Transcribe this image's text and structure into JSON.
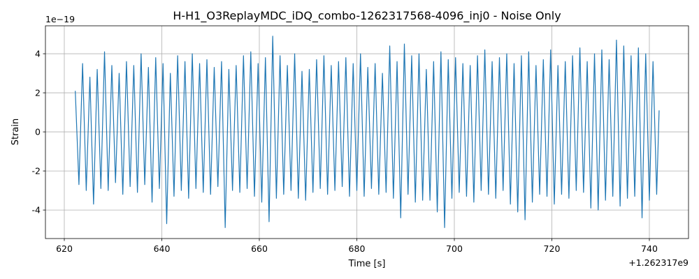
{
  "chart_data": {
    "type": "line",
    "title": "H-H1_O3ReplayMDC_iDQ_combo-1262317568-4096_inj0 - Noise Only",
    "xlabel": "Time [s]",
    "ylabel": "Strain",
    "x_offset_label": "+1.262317e9",
    "y_offset_label": "1e−19",
    "color": "#1f77b4",
    "grid": true,
    "xlim": [
      616.13,
      748.03
    ],
    "ylim": [
      -5.46,
      5.43
    ],
    "xticks": [
      620,
      640,
      660,
      680,
      700,
      720,
      740
    ],
    "yticks": [
      -4,
      -2,
      0,
      2,
      4
    ],
    "x": [
      622.25,
      623,
      623.75,
      624.5,
      625.25,
      626,
      626.75,
      627.5,
      628.25,
      629,
      629.75,
      630.5,
      631.25,
      632,
      632.75,
      633.5,
      634.25,
      635,
      635.75,
      636.5,
      637.25,
      638,
      638.75,
      639.5,
      640.25,
      641,
      641.75,
      642.5,
      643.25,
      644,
      644.75,
      645.5,
      646.25,
      647,
      647.75,
      648.5,
      649.25,
      650,
      650.75,
      651.5,
      652.25,
      653,
      653.75,
      654.5,
      655.25,
      656,
      656.75,
      657.5,
      658.25,
      659,
      659.75,
      660.5,
      661.25,
      662,
      662.75,
      663.5,
      664.25,
      665,
      665.75,
      666.5,
      667.25,
      668,
      668.75,
      669.5,
      670.25,
      671,
      671.75,
      672.5,
      673.25,
      674,
      674.75,
      675.5,
      676.25,
      677,
      677.75,
      678.5,
      679.25,
      680,
      680.75,
      681.5,
      682.25,
      683,
      683.75,
      684.5,
      685.25,
      686,
      686.75,
      687.5,
      688.25,
      689,
      689.75,
      690.5,
      691.25,
      692,
      692.75,
      693.5,
      694.25,
      695,
      695.75,
      696.5,
      697.25,
      698,
      698.75,
      699.5,
      700.25,
      701,
      701.75,
      702.5,
      703.25,
      704,
      704.75,
      705.5,
      706.25,
      707,
      707.75,
      708.5,
      709.25,
      710,
      710.75,
      711.5,
      712.25,
      713,
      713.75,
      714.5,
      715.25,
      716,
      716.75,
      717.5,
      718.25,
      719,
      719.75,
      720.5,
      721.25,
      722,
      722.75,
      723.5,
      724.25,
      725,
      725.75,
      726.5,
      727.25,
      728,
      728.75,
      729.5,
      730.25,
      731,
      731.75,
      732.5,
      733.25,
      734,
      734.75,
      735.5,
      736.25,
      737,
      737.75,
      738.5,
      739.25,
      740,
      740.75,
      741.5,
      742
    ],
    "values": [
      2.1,
      -2.7,
      3.5,
      -3.0,
      2.8,
      -3.7,
      3.2,
      -2.9,
      4.1,
      -3.0,
      3.4,
      -2.6,
      3.0,
      -3.2,
      3.6,
      -2.8,
      3.4,
      -3.1,
      4.0,
      -2.7,
      3.3,
      -3.6,
      3.8,
      -2.9,
      3.5,
      -4.7,
      3.0,
      -3.3,
      3.9,
      -3.0,
      3.6,
      -3.4,
      4.0,
      -2.9,
      3.5,
      -3.1,
      3.7,
      -3.2,
      3.3,
      -2.8,
      3.6,
      -4.9,
      3.2,
      -3.0,
      3.4,
      -3.1,
      3.9,
      -2.9,
      4.1,
      -3.3,
      3.5,
      -3.6,
      3.8,
      -4.6,
      4.9,
      -3.4,
      3.9,
      -3.2,
      3.4,
      -3.0,
      4.0,
      -3.4,
      3.1,
      -3.5,
      3.2,
      -3.1,
      3.7,
      -2.9,
      3.9,
      -3.2,
      3.4,
      -3.0,
      3.6,
      -2.8,
      3.8,
      -3.3,
      3.5,
      -3.0,
      4.0,
      -3.3,
      3.3,
      -2.9,
      3.5,
      -3.2,
      3.0,
      -3.1,
      4.4,
      -3.4,
      3.6,
      -4.4,
      4.5,
      -3.2,
      3.9,
      -3.6,
      4.0,
      -3.5,
      3.2,
      -3.5,
      3.6,
      -4.1,
      4.1,
      -4.9,
      3.7,
      -3.4,
      3.8,
      -3.1,
      3.5,
      -3.3,
      3.4,
      -3.6,
      3.9,
      -3.0,
      4.2,
      -3.2,
      3.6,
      -3.4,
      3.8,
      -3.0,
      4.0,
      -3.7,
      3.5,
      -4.1,
      3.9,
      -4.5,
      4.1,
      -3.6,
      3.4,
      -3.2,
      3.7,
      -3.3,
      4.2,
      -3.7,
      3.4,
      -3.2,
      3.6,
      -3.4,
      3.9,
      -3.0,
      4.3,
      -3.1,
      3.6,
      -3.9,
      4.0,
      -4.0,
      4.2,
      -3.5,
      3.7,
      -3.3,
      4.7,
      -3.8,
      4.4,
      -3.4,
      3.9,
      -3.3,
      4.3,
      -4.4,
      4.0,
      -3.5,
      3.6,
      -3.2,
      1.1
    ]
  }
}
